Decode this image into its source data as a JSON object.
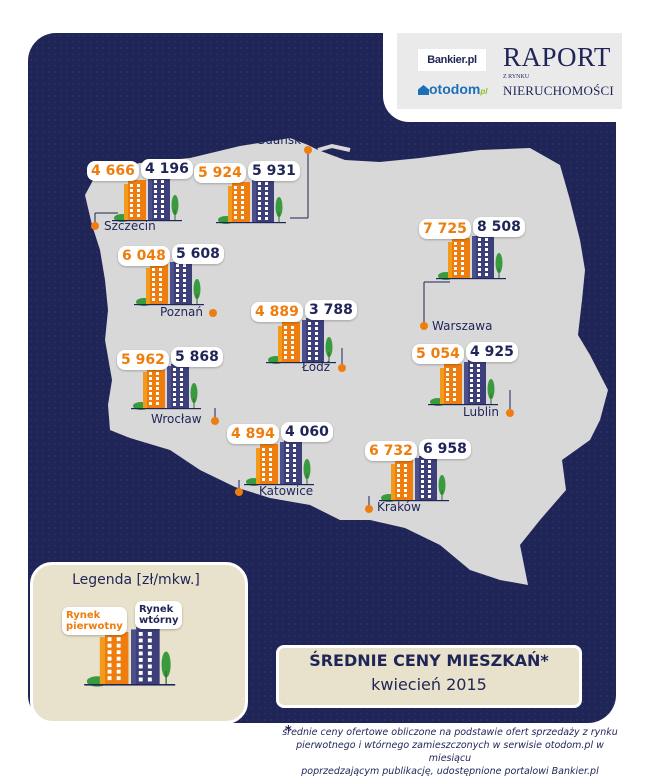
{
  "logos": {
    "bankier": "Bankier.pl",
    "otodom": "otodom",
    "otodom_suffix": "pl",
    "raport": "RAPORT",
    "z_rynku": "Z RYNKU",
    "nieruchomosci": "NIERUCHOMOŚCI"
  },
  "cities": [
    {
      "name": "Szczecin",
      "primary": "4 666",
      "secondary": "4 196"
    },
    {
      "name": "Gdańsk",
      "primary": "5 924",
      "secondary": "5 931"
    },
    {
      "name": "Warszawa",
      "primary": "7 725",
      "secondary": "8 508"
    },
    {
      "name": "Poznań",
      "primary": "6 048",
      "secondary": "5 608"
    },
    {
      "name": "Łódź",
      "primary": "4 889",
      "secondary": "3 788"
    },
    {
      "name": "Lublin",
      "primary": "5 054",
      "secondary": "4 925"
    },
    {
      "name": "Wrocław",
      "primary": "5 962",
      "secondary": "5 868"
    },
    {
      "name": "Katowice",
      "primary": "4 894",
      "secondary": "4 060"
    },
    {
      "name": "Kraków",
      "primary": "6 732",
      "secondary": "6 958"
    }
  ],
  "legend": {
    "title": "Legenda [zł/mkw.]",
    "primary_line1": "Rynek",
    "primary_line2": "pierwotny",
    "secondary_line1": "Rynek",
    "secondary_line2": "wtórny"
  },
  "title": {
    "line1": "ŚREDNIE CENY MIESZKAŃ*",
    "line2": "kwiecień 2015"
  },
  "footnote": {
    "star": "*",
    "line1": "średnie ceny ofertowe obliczone na podstawie ofert sprzedaży z rynku",
    "line2": "pierwotnego i wtórnego zamieszczonych w serwisie otodom.pl w miesiącu",
    "line3": "poprzedzającym publikację, udostępnione portalowi Bankier.pl"
  },
  "colors": {
    "navy": "#1f2557",
    "orange": "#ef7d0e",
    "map": "#d8d8d8",
    "beige": "#e8e2cc",
    "green": "#3a9a3e"
  }
}
